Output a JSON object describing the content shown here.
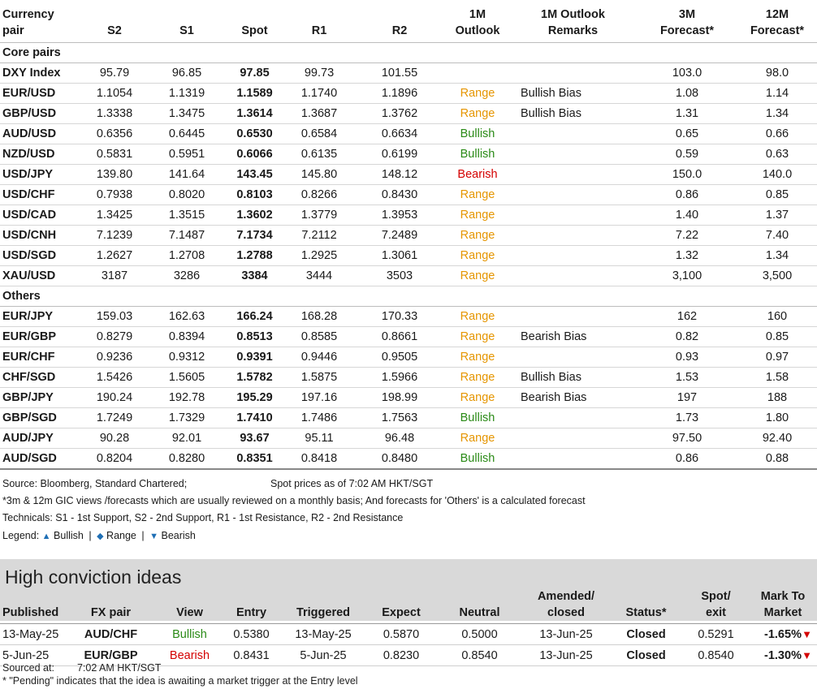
{
  "colors": {
    "range": "#e59500",
    "bullish": "#2a8a16",
    "bearish": "#d40000",
    "legend_tri": "#1f6fb5",
    "banner": "#d9d9d9"
  },
  "headers": {
    "pair": [
      "Currency",
      "pair"
    ],
    "s2": "S2",
    "s1": "S1",
    "spot": "Spot",
    "r1": "R1",
    "r2": "R2",
    "outlook": [
      "1M",
      "Outlook"
    ],
    "remarks": [
      "1M Outlook",
      "Remarks"
    ],
    "f3m": [
      "3M",
      "Forecast*"
    ],
    "f12m": [
      "12M",
      "Forecast*"
    ]
  },
  "sections": [
    {
      "name": "Core pairs",
      "rows": [
        {
          "pair": "DXY Index",
          "s2": "95.79",
          "s1": "96.85",
          "spot": "97.85",
          "r1": "99.73",
          "r2": "101.55",
          "outlook": "",
          "remarks": "",
          "f3m": "103.0",
          "f12m": "98.0"
        },
        {
          "pair": "EUR/USD",
          "s2": "1.1054",
          "s1": "1.1319",
          "spot": "1.1589",
          "r1": "1.1740",
          "r2": "1.1896",
          "outlook": "Range",
          "remarks": "Bullish Bias",
          "f3m": "1.08",
          "f12m": "1.14"
        },
        {
          "pair": "GBP/USD",
          "s2": "1.3338",
          "s1": "1.3475",
          "spot": "1.3614",
          "r1": "1.3687",
          "r2": "1.3762",
          "outlook": "Range",
          "remarks": "Bullish Bias",
          "f3m": "1.31",
          "f12m": "1.34"
        },
        {
          "pair": "AUD/USD",
          "s2": "0.6356",
          "s1": "0.6445",
          "spot": "0.6530",
          "r1": "0.6584",
          "r2": "0.6634",
          "outlook": "Bullish",
          "remarks": "",
          "f3m": "0.65",
          "f12m": "0.66"
        },
        {
          "pair": "NZD/USD",
          "s2": "0.5831",
          "s1": "0.5951",
          "spot": "0.6066",
          "r1": "0.6135",
          "r2": "0.6199",
          "outlook": "Bullish",
          "remarks": "",
          "f3m": "0.59",
          "f12m": "0.63"
        },
        {
          "pair": "USD/JPY",
          "s2": "139.80",
          "s1": "141.64",
          "spot": "143.45",
          "r1": "145.80",
          "r2": "148.12",
          "outlook": "Bearish",
          "remarks": "",
          "f3m": "150.0",
          "f12m": "140.0"
        },
        {
          "pair": "USD/CHF",
          "s2": "0.7938",
          "s1": "0.8020",
          "spot": "0.8103",
          "r1": "0.8266",
          "r2": "0.8430",
          "outlook": "Range",
          "remarks": "",
          "f3m": "0.86",
          "f12m": "0.85"
        },
        {
          "pair": "USD/CAD",
          "s2": "1.3425",
          "s1": "1.3515",
          "spot": "1.3602",
          "r1": "1.3779",
          "r2": "1.3953",
          "outlook": "Range",
          "remarks": "",
          "f3m": "1.40",
          "f12m": "1.37"
        },
        {
          "pair": "USD/CNH",
          "s2": "7.1239",
          "s1": "7.1487",
          "spot": "7.1734",
          "r1": "7.2112",
          "r2": "7.2489",
          "outlook": "Range",
          "remarks": "",
          "f3m": "7.22",
          "f12m": "7.40"
        },
        {
          "pair": "USD/SGD",
          "s2": "1.2627",
          "s1": "1.2708",
          "spot": "1.2788",
          "r1": "1.2925",
          "r2": "1.3061",
          "outlook": "Range",
          "remarks": "",
          "f3m": "1.32",
          "f12m": "1.34"
        },
        {
          "pair": "XAU/USD",
          "s2": "3187",
          "s1": "3286",
          "spot": "3384",
          "r1": "3444",
          "r2": "3503",
          "outlook": "Range",
          "remarks": "",
          "f3m": "3,100",
          "f12m": "3,500"
        }
      ]
    },
    {
      "name": "Others",
      "rows": [
        {
          "pair": "EUR/JPY",
          "s2": "159.03",
          "s1": "162.63",
          "spot": "166.24",
          "r1": "168.28",
          "r2": "170.33",
          "outlook": "Range",
          "remarks": "",
          "f3m": "162",
          "f12m": "160"
        },
        {
          "pair": "EUR/GBP",
          "s2": "0.8279",
          "s1": "0.8394",
          "spot": "0.8513",
          "r1": "0.8585",
          "r2": "0.8661",
          "outlook": "Range",
          "remarks": "Bearish Bias",
          "f3m": "0.82",
          "f12m": "0.85"
        },
        {
          "pair": "EUR/CHF",
          "s2": "0.9236",
          "s1": "0.9312",
          "spot": "0.9391",
          "r1": "0.9446",
          "r2": "0.9505",
          "outlook": "Range",
          "remarks": "",
          "f3m": "0.93",
          "f12m": "0.97"
        },
        {
          "pair": "CHF/SGD",
          "s2": "1.5426",
          "s1": "1.5605",
          "spot": "1.5782",
          "r1": "1.5875",
          "r2": "1.5966",
          "outlook": "Range",
          "remarks": "Bullish Bias",
          "f3m": "1.53",
          "f12m": "1.58"
        },
        {
          "pair": "GBP/JPY",
          "s2": "190.24",
          "s1": "192.78",
          "spot": "195.29",
          "r1": "197.16",
          "r2": "198.99",
          "outlook": "Range",
          "remarks": "Bearish Bias",
          "f3m": "197",
          "f12m": "188"
        },
        {
          "pair": "GBP/SGD",
          "s2": "1.7249",
          "s1": "1.7329",
          "spot": "1.7410",
          "r1": "1.7486",
          "r2": "1.7563",
          "outlook": "Bullish",
          "remarks": "",
          "f3m": "1.73",
          "f12m": "1.80"
        },
        {
          "pair": "AUD/JPY",
          "s2": "90.28",
          "s1": "92.01",
          "spot": "93.67",
          "r1": "95.11",
          "r2": "96.48",
          "outlook": "Range",
          "remarks": "",
          "f3m": "97.50",
          "f12m": "92.40"
        },
        {
          "pair": "AUD/SGD",
          "s2": "0.8204",
          "s1": "0.8280",
          "spot": "0.8351",
          "r1": "0.8418",
          "r2": "0.8480",
          "outlook": "Bullish",
          "remarks": "",
          "f3m": "0.86",
          "f12m": "0.88"
        }
      ]
    }
  ],
  "notes": {
    "source": "Source: Bloomberg, Standard Chartered;",
    "spot_time": "Spot prices as of 7:02 AM HKT/SGT",
    "forecast_note": "*3m & 12m GIC views /forecasts which are usually reviewed on a monthly basis; And forecasts for 'Others' is a calculated forecast",
    "technicals": "Technicals: S1 - 1st Support, S2 - 2nd Support, R1 - 1st Resistance, R2 - 2nd Resistance",
    "legend_label": "Legend:",
    "legend_bullish": "Bullish",
    "legend_range": "Range",
    "legend_bearish": "Bearish",
    "sep": "|"
  },
  "high_conviction": {
    "title": "High conviction ideas",
    "headers": {
      "published": "Published",
      "pair": "FX pair",
      "view": "View",
      "entry": "Entry",
      "triggered": "Triggered",
      "expect": "Expect",
      "neutral": "Neutral",
      "amended": [
        "Amended/",
        "closed"
      ],
      "status": "Status*",
      "spot": [
        "Spot/",
        "exit"
      ],
      "mtm": [
        "Mark To",
        "Market"
      ]
    },
    "rows": [
      {
        "published": "13-May-25",
        "pair": "AUD/CHF",
        "view": "Bullish",
        "entry": "0.5380",
        "triggered": "13-May-25",
        "expect": "0.5870",
        "neutral": "0.5000",
        "amended": "13-Jun-25",
        "status": "Closed",
        "spot": "0.5291",
        "mtm": "-1.65%"
      },
      {
        "published": "5-Jun-25",
        "pair": "EUR/GBP",
        "view": "Bearish",
        "entry": "0.8431",
        "triggered": "5-Jun-25",
        "expect": "0.8230",
        "neutral": "0.8540",
        "amended": "13-Jun-25",
        "status": "Closed",
        "spot": "0.8540",
        "mtm": "-1.30%"
      }
    ],
    "sourced_label": "Sourced at:",
    "sourced_time": "7:02 AM HKT/SGT",
    "pending_note": "* \"Pending\" indicates that the idea is awaiting a market trigger at the Entry level"
  }
}
